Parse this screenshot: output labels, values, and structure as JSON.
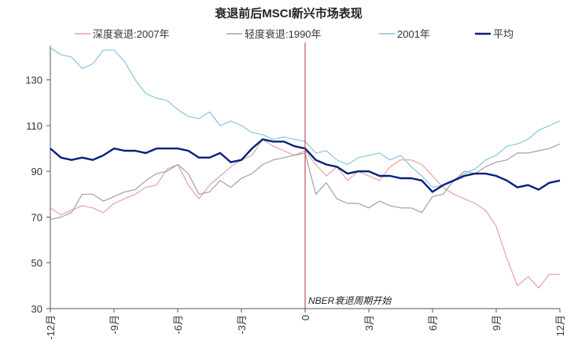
{
  "chart_data": {
    "type": "line",
    "title": "衰退前后MSCI新兴市场表现",
    "xlabel": "",
    "ylabel": "",
    "xlim": [
      -12,
      12
    ],
    "ylim": [
      30,
      145
    ],
    "x_ticks": [
      {
        "value": -12,
        "label": "-12月"
      },
      {
        "value": -9,
        "label": "-9月"
      },
      {
        "value": -6,
        "label": "-6月"
      },
      {
        "value": -3,
        "label": "-3月"
      },
      {
        "value": 0,
        "label": "0"
      },
      {
        "value": 3,
        "label": "3月"
      },
      {
        "value": 6,
        "label": "6月"
      },
      {
        "value": 9,
        "label": "9月"
      },
      {
        "value": 12,
        "label": "12月"
      }
    ],
    "y_ticks": [
      30,
      50,
      70,
      90,
      110,
      130
    ],
    "grid": false,
    "legend_position": "top",
    "vertical_line": {
      "x": 0,
      "label": "NBER衰退周期开始",
      "color": "#b03030"
    },
    "series": [
      {
        "name": "深度衰退:2007年",
        "color": "#e8a0a0",
        "width": 1.2,
        "points": [
          [
            -12,
            74
          ],
          [
            -11.5,
            71
          ],
          [
            -11,
            73
          ],
          [
            -10.5,
            75
          ],
          [
            -10,
            74
          ],
          [
            -9.5,
            72
          ],
          [
            -9,
            76
          ],
          [
            -8.5,
            78
          ],
          [
            -8,
            80
          ],
          [
            -7.5,
            83
          ],
          [
            -7,
            84
          ],
          [
            -6.5,
            91
          ],
          [
            -6,
            93
          ],
          [
            -5.5,
            84
          ],
          [
            -5,
            78
          ],
          [
            -4.5,
            84
          ],
          [
            -4,
            88
          ],
          [
            -3.5,
            92
          ],
          [
            -3,
            95
          ],
          [
            -2.5,
            97
          ],
          [
            -2,
            104
          ],
          [
            -1.5,
            101
          ],
          [
            -1,
            99
          ],
          [
            -0.5,
            97
          ],
          [
            0,
            99
          ],
          [
            0.5,
            93
          ],
          [
            1,
            88
          ],
          [
            1.5,
            92
          ],
          [
            2,
            86
          ],
          [
            2.5,
            90
          ],
          [
            3,
            88
          ],
          [
            3.5,
            86
          ],
          [
            4,
            92
          ],
          [
            4.5,
            95
          ],
          [
            5,
            95
          ],
          [
            5.5,
            93
          ],
          [
            6,
            88
          ],
          [
            6.5,
            83
          ],
          [
            7,
            80
          ],
          [
            7.5,
            78
          ],
          [
            8,
            76
          ],
          [
            8.5,
            73
          ],
          [
            9,
            66
          ],
          [
            9.5,
            52
          ],
          [
            10,
            40
          ],
          [
            10.5,
            44
          ],
          [
            11,
            39
          ],
          [
            11.5,
            45
          ],
          [
            12,
            45
          ]
        ]
      },
      {
        "name": "轻度衰退:1990年",
        "color": "#a0a0a0",
        "width": 1.2,
        "points": [
          [
            -12,
            69
          ],
          [
            -11.5,
            70
          ],
          [
            -11,
            72
          ],
          [
            -10.5,
            80
          ],
          [
            -10,
            80
          ],
          [
            -9.5,
            77
          ],
          [
            -9,
            79
          ],
          [
            -8.5,
            81
          ],
          [
            -8,
            82
          ],
          [
            -7.5,
            86
          ],
          [
            -7,
            89
          ],
          [
            -6.5,
            90
          ],
          [
            -6,
            93
          ],
          [
            -5.5,
            89
          ],
          [
            -5,
            80
          ],
          [
            -4.5,
            81
          ],
          [
            -4,
            86
          ],
          [
            -3.5,
            83
          ],
          [
            -3,
            87
          ],
          [
            -2.5,
            89
          ],
          [
            -2,
            93
          ],
          [
            -1.5,
            95
          ],
          [
            -1,
            96
          ],
          [
            -0.5,
            97
          ],
          [
            0,
            98
          ],
          [
            0.5,
            80
          ],
          [
            1,
            85
          ],
          [
            1.5,
            78
          ],
          [
            2,
            76
          ],
          [
            2.5,
            76
          ],
          [
            3,
            74
          ],
          [
            3.5,
            77
          ],
          [
            4,
            75
          ],
          [
            4.5,
            74
          ],
          [
            5,
            74
          ],
          [
            5.5,
            72
          ],
          [
            6,
            79
          ],
          [
            6.5,
            80
          ],
          [
            7,
            86
          ],
          [
            7.5,
            90
          ],
          [
            8,
            89
          ],
          [
            8.5,
            92
          ],
          [
            9,
            94
          ],
          [
            9.5,
            95
          ],
          [
            10,
            98
          ],
          [
            10.5,
            98
          ],
          [
            11,
            99
          ],
          [
            11.5,
            100
          ],
          [
            12,
            102
          ]
        ]
      },
      {
        "name": "2001年",
        "color": "#88c4dc",
        "width": 1.2,
        "points": [
          [
            -12,
            144
          ],
          [
            -11.5,
            141
          ],
          [
            -11,
            140
          ],
          [
            -10.5,
            135
          ],
          [
            -10,
            137
          ],
          [
            -9.5,
            143
          ],
          [
            -9,
            143
          ],
          [
            -8.5,
            138
          ],
          [
            -8,
            130
          ],
          [
            -7.5,
            124
          ],
          [
            -7,
            122
          ],
          [
            -6.5,
            121
          ],
          [
            -6,
            117
          ],
          [
            -5.5,
            114
          ],
          [
            -5,
            113
          ],
          [
            -4.5,
            116
          ],
          [
            -4,
            110
          ],
          [
            -3.5,
            112
          ],
          [
            -3,
            110
          ],
          [
            -2.5,
            107
          ],
          [
            -2,
            106
          ],
          [
            -1.5,
            104
          ],
          [
            -1,
            105
          ],
          [
            -0.5,
            104
          ],
          [
            0,
            103
          ],
          [
            0.5,
            98
          ],
          [
            1,
            99
          ],
          [
            1.5,
            95
          ],
          [
            2,
            93
          ],
          [
            2.5,
            96
          ],
          [
            3,
            97
          ],
          [
            3.5,
            98
          ],
          [
            4,
            95
          ],
          [
            4.5,
            97
          ],
          [
            5,
            92
          ],
          [
            5.5,
            88
          ],
          [
            6,
            83
          ],
          [
            6.5,
            84
          ],
          [
            7,
            86
          ],
          [
            7.5,
            89
          ],
          [
            8,
            91
          ],
          [
            8.5,
            95
          ],
          [
            9,
            97
          ],
          [
            9.5,
            101
          ],
          [
            10,
            102
          ],
          [
            10.5,
            104
          ],
          [
            11,
            108
          ],
          [
            11.5,
            110
          ],
          [
            12,
            112
          ]
        ]
      },
      {
        "name": "平均",
        "color": "#001f7a",
        "width": 2.4,
        "points": [
          [
            -12,
            100
          ],
          [
            -11.5,
            96
          ],
          [
            -11,
            95
          ],
          [
            -10.5,
            96
          ],
          [
            -10,
            95
          ],
          [
            -9.5,
            97
          ],
          [
            -9,
            100
          ],
          [
            -8.5,
            99
          ],
          [
            -8,
            99
          ],
          [
            -7.5,
            98
          ],
          [
            -7,
            100
          ],
          [
            -6.5,
            100
          ],
          [
            -6,
            100
          ],
          [
            -5.5,
            99
          ],
          [
            -5,
            96
          ],
          [
            -4.5,
            96
          ],
          [
            -4,
            98
          ],
          [
            -3.5,
            94
          ],
          [
            -3,
            95
          ],
          [
            -2.5,
            100
          ],
          [
            -2,
            104
          ],
          [
            -1.5,
            103
          ],
          [
            -1,
            103
          ],
          [
            -0.5,
            101
          ],
          [
            0,
            100
          ],
          [
            0.5,
            95
          ],
          [
            1,
            93
          ],
          [
            1.5,
            92
          ],
          [
            2,
            89
          ],
          [
            2.5,
            90
          ],
          [
            3,
            90
          ],
          [
            3.5,
            88
          ],
          [
            4,
            88
          ],
          [
            4.5,
            87
          ],
          [
            5,
            87
          ],
          [
            5.5,
            86
          ],
          [
            6,
            81
          ],
          [
            6.5,
            84
          ],
          [
            7,
            86
          ],
          [
            7.5,
            88
          ],
          [
            8,
            89
          ],
          [
            8.5,
            89
          ],
          [
            9,
            88
          ],
          [
            9.5,
            86
          ],
          [
            10,
            83
          ],
          [
            10.5,
            84
          ],
          [
            11,
            82
          ],
          [
            11.5,
            85
          ],
          [
            12,
            86
          ]
        ]
      }
    ]
  }
}
